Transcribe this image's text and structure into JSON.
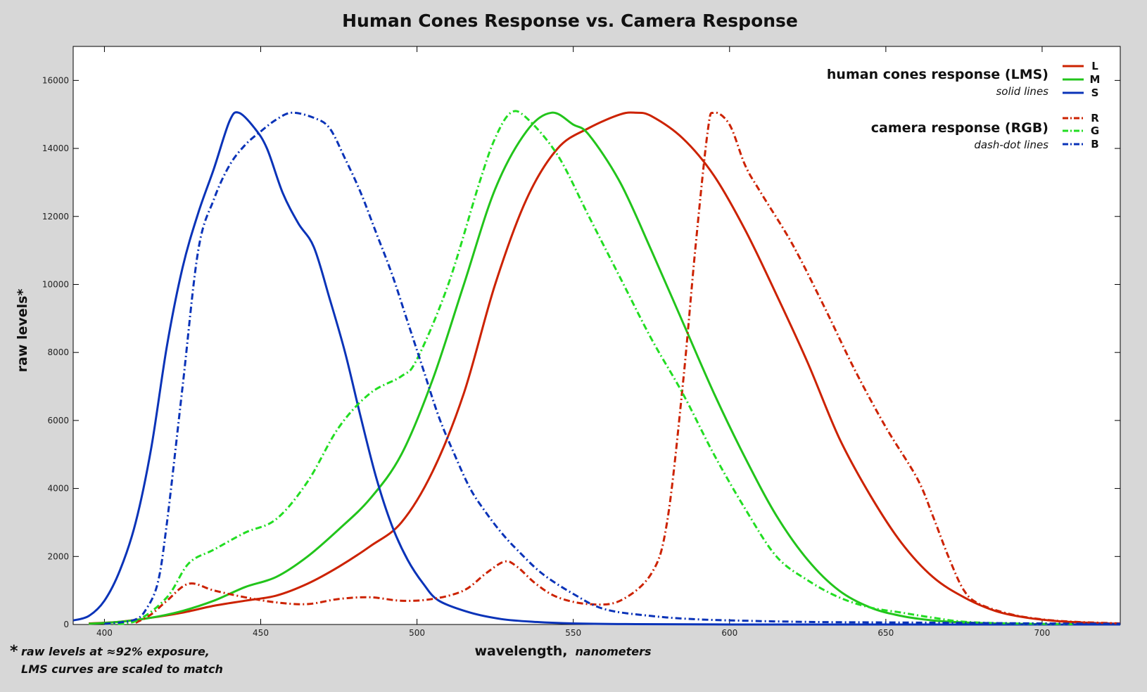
{
  "chart_data": {
    "type": "line",
    "title": "Human Cones Response vs. Camera Response",
    "xlabel": "wavelength,",
    "xlabel_unit": "nanometers",
    "ylabel": "raw levels*",
    "xlim": [
      390,
      725
    ],
    "ylim": [
      0,
      17000
    ],
    "xticks": [
      400,
      450,
      500,
      550,
      600,
      650,
      700
    ],
    "yticks": [
      0,
      2000,
      4000,
      6000,
      8000,
      10000,
      12000,
      14000,
      16000
    ],
    "grid": false,
    "legend": {
      "placement": "top-right",
      "groups": [
        {
          "heading": "human cones response (LMS)",
          "subheading": "solid lines",
          "style": "solid",
          "entries": [
            {
              "key": "L",
              "color": "#cc2200"
            },
            {
              "key": "M",
              "color": "#22c41b"
            },
            {
              "key": "S",
              "color": "#0a33b8"
            }
          ]
        },
        {
          "heading": "camera response (RGB)",
          "subheading": "dash-dot lines",
          "style": "dashdot",
          "entries": [
            {
              "key": "R",
              "color": "#cc2200"
            },
            {
              "key": "G",
              "color": "#22dd22"
            },
            {
              "key": "B",
              "color": "#0a33b8"
            }
          ]
        }
      ]
    },
    "footnote": {
      "star": "*",
      "lines": [
        "raw levels at ≈92% exposure,",
        "LMS curves are scaled to match"
      ]
    },
    "series": [
      {
        "name": "L",
        "style": "solid",
        "color": "#cc2200",
        "points": [
          [
            395,
            30
          ],
          [
            405,
            80
          ],
          [
            415,
            200
          ],
          [
            425,
            350
          ],
          [
            435,
            550
          ],
          [
            445,
            700
          ],
          [
            455,
            850
          ],
          [
            465,
            1200
          ],
          [
            475,
            1700
          ],
          [
            485,
            2300
          ],
          [
            495,
            3000
          ],
          [
            505,
            4500
          ],
          [
            515,
            6800
          ],
          [
            525,
            10000
          ],
          [
            535,
            12500
          ],
          [
            545,
            14000
          ],
          [
            555,
            14600
          ],
          [
            565,
            15000
          ],
          [
            570,
            15050
          ],
          [
            575,
            14950
          ],
          [
            585,
            14300
          ],
          [
            595,
            13200
          ],
          [
            605,
            11600
          ],
          [
            615,
            9700
          ],
          [
            625,
            7700
          ],
          [
            635,
            5500
          ],
          [
            645,
            3800
          ],
          [
            655,
            2400
          ],
          [
            665,
            1400
          ],
          [
            675,
            800
          ],
          [
            685,
            400
          ],
          [
            695,
            200
          ],
          [
            705,
            100
          ],
          [
            715,
            50
          ],
          [
            725,
            20
          ]
        ]
      },
      {
        "name": "M",
        "style": "solid",
        "color": "#22c41b",
        "points": [
          [
            395,
            20
          ],
          [
            405,
            80
          ],
          [
            415,
            200
          ],
          [
            425,
            400
          ],
          [
            435,
            700
          ],
          [
            445,
            1100
          ],
          [
            455,
            1400
          ],
          [
            465,
            2000
          ],
          [
            475,
            2800
          ],
          [
            485,
            3700
          ],
          [
            495,
            5000
          ],
          [
            505,
            7200
          ],
          [
            515,
            10000
          ],
          [
            525,
            12800
          ],
          [
            535,
            14500
          ],
          [
            543,
            15050
          ],
          [
            550,
            14700
          ],
          [
            555,
            14400
          ],
          [
            565,
            13000
          ],
          [
            575,
            11000
          ],
          [
            585,
            8900
          ],
          [
            595,
            6800
          ],
          [
            605,
            4900
          ],
          [
            615,
            3200
          ],
          [
            625,
            1900
          ],
          [
            635,
            1000
          ],
          [
            645,
            500
          ],
          [
            655,
            250
          ],
          [
            665,
            120
          ],
          [
            675,
            60
          ],
          [
            685,
            30
          ],
          [
            700,
            10
          ]
        ]
      },
      {
        "name": "S",
        "style": "solid",
        "color": "#0a33b8",
        "points": [
          [
            390,
            120
          ],
          [
            395,
            250
          ],
          [
            400,
            700
          ],
          [
            405,
            1600
          ],
          [
            410,
            3000
          ],
          [
            415,
            5200
          ],
          [
            420,
            8200
          ],
          [
            425,
            10500
          ],
          [
            430,
            12100
          ],
          [
            435,
            13400
          ],
          [
            440,
            14800
          ],
          [
            443,
            15050
          ],
          [
            448,
            14600
          ],
          [
            452,
            14000
          ],
          [
            457,
            12700
          ],
          [
            462,
            11800
          ],
          [
            467,
            11100
          ],
          [
            472,
            9600
          ],
          [
            477,
            8000
          ],
          [
            482,
            6100
          ],
          [
            487,
            4300
          ],
          [
            492,
            2900
          ],
          [
            497,
            1900
          ],
          [
            502,
            1200
          ],
          [
            507,
            700
          ],
          [
            517,
            350
          ],
          [
            527,
            160
          ],
          [
            537,
            80
          ],
          [
            550,
            30
          ],
          [
            570,
            10
          ],
          [
            600,
            0
          ],
          [
            650,
            0
          ],
          [
            725,
            0
          ]
        ]
      },
      {
        "name": "R",
        "style": "dashdot",
        "color": "#cc2200",
        "points": [
          [
            410,
            50
          ],
          [
            415,
            300
          ],
          [
            420,
            700
          ],
          [
            427,
            1200
          ],
          [
            435,
            1000
          ],
          [
            445,
            800
          ],
          [
            455,
            650
          ],
          [
            465,
            600
          ],
          [
            475,
            750
          ],
          [
            485,
            800
          ],
          [
            495,
            700
          ],
          [
            505,
            750
          ],
          [
            515,
            1000
          ],
          [
            522,
            1500
          ],
          [
            528,
            1850
          ],
          [
            532,
            1700
          ],
          [
            538,
            1200
          ],
          [
            545,
            800
          ],
          [
            555,
            600
          ],
          [
            565,
            700
          ],
          [
            575,
            1500
          ],
          [
            580,
            3000
          ],
          [
            585,
            7000
          ],
          [
            589,
            11000
          ],
          [
            593,
            14500
          ],
          [
            595,
            15050
          ],
          [
            600,
            14700
          ],
          [
            605,
            13500
          ],
          [
            610,
            12700
          ],
          [
            620,
            11200
          ],
          [
            630,
            9400
          ],
          [
            640,
            7500
          ],
          [
            650,
            5800
          ],
          [
            660,
            4300
          ],
          [
            665,
            3200
          ],
          [
            670,
            2000
          ],
          [
            675,
            1000
          ],
          [
            680,
            600
          ],
          [
            690,
            300
          ],
          [
            700,
            150
          ],
          [
            710,
            80
          ],
          [
            725,
            30
          ]
        ]
      },
      {
        "name": "G",
        "style": "dashdot",
        "color": "#22dd22",
        "points": [
          [
            400,
            20
          ],
          [
            410,
            100
          ],
          [
            420,
            800
          ],
          [
            427,
            1800
          ],
          [
            435,
            2200
          ],
          [
            445,
            2700
          ],
          [
            455,
            3100
          ],
          [
            465,
            4200
          ],
          [
            475,
            5800
          ],
          [
            485,
            6800
          ],
          [
            495,
            7300
          ],
          [
            500,
            7800
          ],
          [
            510,
            10000
          ],
          [
            520,
            13000
          ],
          [
            525,
            14300
          ],
          [
            530,
            15050
          ],
          [
            535,
            14900
          ],
          [
            545,
            13800
          ],
          [
            555,
            12000
          ],
          [
            565,
            10200
          ],
          [
            575,
            8400
          ],
          [
            585,
            6800
          ],
          [
            595,
            5000
          ],
          [
            605,
            3400
          ],
          [
            615,
            2000
          ],
          [
            625,
            1300
          ],
          [
            635,
            800
          ],
          [
            645,
            500
          ],
          [
            655,
            350
          ],
          [
            665,
            200
          ],
          [
            675,
            80
          ],
          [
            690,
            30
          ],
          [
            710,
            10
          ]
        ]
      },
      {
        "name": "B",
        "style": "dashdot",
        "color": "#0a33b8",
        "points": [
          [
            400,
            20
          ],
          [
            405,
            60
          ],
          [
            410,
            150
          ],
          [
            413,
            400
          ],
          [
            417,
            1200
          ],
          [
            420,
            3000
          ],
          [
            425,
            7000
          ],
          [
            430,
            11000
          ],
          [
            435,
            12500
          ],
          [
            440,
            13500
          ],
          [
            445,
            14100
          ],
          [
            450,
            14500
          ],
          [
            455,
            14850
          ],
          [
            460,
            15050
          ],
          [
            467,
            14900
          ],
          [
            472,
            14600
          ],
          [
            477,
            13700
          ],
          [
            482,
            12700
          ],
          [
            487,
            11500
          ],
          [
            492,
            10300
          ],
          [
            497,
            8900
          ],
          [
            502,
            7500
          ],
          [
            507,
            6100
          ],
          [
            512,
            5000
          ],
          [
            517,
            4000
          ],
          [
            522,
            3300
          ],
          [
            527,
            2700
          ],
          [
            532,
            2200
          ],
          [
            540,
            1500
          ],
          [
            550,
            900
          ],
          [
            560,
            450
          ],
          [
            575,
            250
          ],
          [
            590,
            150
          ],
          [
            610,
            100
          ],
          [
            630,
            70
          ],
          [
            650,
            60
          ],
          [
            670,
            50
          ],
          [
            700,
            30
          ],
          [
            725,
            20
          ]
        ]
      }
    ]
  }
}
